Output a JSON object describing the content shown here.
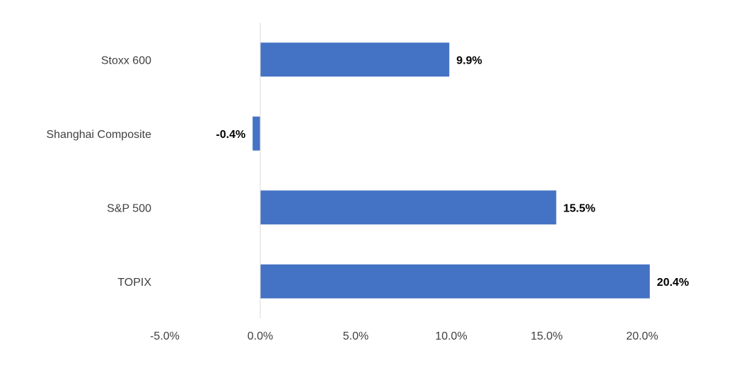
{
  "chart_data": {
    "type": "bar",
    "orientation": "horizontal",
    "categories": [
      "Stoxx 600",
      "Shanghai Composite",
      "S&P 500",
      "TOPIX"
    ],
    "values": [
      9.9,
      -0.4,
      15.5,
      20.4
    ],
    "data_labels": [
      "9.9%",
      "-0.4%",
      "15.5%",
      "20.4%"
    ],
    "title": "",
    "xlabel": "",
    "ylabel": "",
    "xlim": [
      -5,
      20.4
    ],
    "x_ticks": [
      -5,
      0,
      5,
      10,
      15,
      20
    ],
    "x_tick_labels": [
      "-5.0%",
      "0.0%",
      "5.0%",
      "10.0%",
      "15.0%",
      "20.0%"
    ],
    "grid": false,
    "legend": "none",
    "bar_color": "#4472C4",
    "axis_color": "#D9D9D9"
  }
}
